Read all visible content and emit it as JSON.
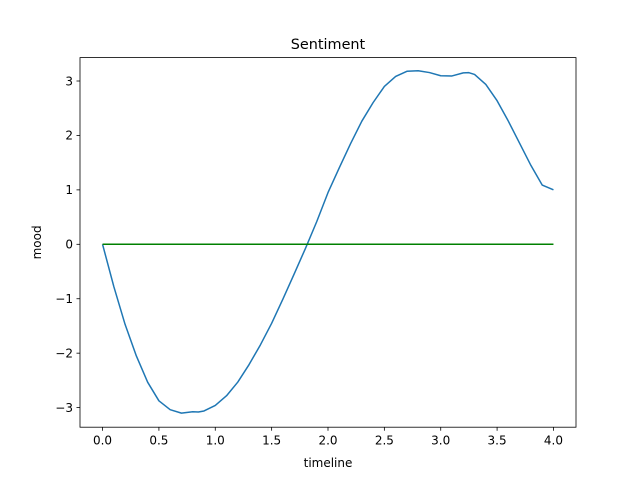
{
  "chart_data": {
    "type": "line",
    "title": "Sentiment",
    "xlabel": "timeline",
    "ylabel": "mood",
    "xlim": [
      -0.2,
      4.2
    ],
    "ylim": [
      -3.36,
      3.43
    ],
    "grid": false,
    "x_ticks": [
      0.0,
      0.5,
      1.0,
      1.5,
      2.0,
      2.5,
      3.0,
      3.5,
      4.0
    ],
    "x_tick_labels": [
      "0.0",
      "0.5",
      "1.0",
      "1.5",
      "2.0",
      "2.5",
      "3.0",
      "3.5",
      "4.0"
    ],
    "y_ticks": [
      -3,
      -2,
      -1,
      0,
      1,
      2,
      3
    ],
    "y_tick_labels": [
      "−3",
      "−2",
      "−1",
      "0",
      "1",
      "2",
      "3"
    ],
    "series": [
      {
        "color": "#1f77b4",
        "x": [
          0.0,
          0.1,
          0.2,
          0.3,
          0.4,
          0.5,
          0.6,
          0.7,
          0.8,
          0.85,
          0.9,
          1.0,
          1.1,
          1.2,
          1.3,
          1.4,
          1.5,
          1.6,
          1.7,
          1.8,
          1.9,
          2.0,
          2.1,
          2.2,
          2.3,
          2.4,
          2.5,
          2.6,
          2.7,
          2.8,
          2.9,
          3.0,
          3.1,
          3.2,
          3.25,
          3.3,
          3.4,
          3.5,
          3.6,
          3.7,
          3.8,
          3.9,
          4.0
        ],
        "y": [
          0.0,
          -0.776,
          -1.472,
          -2.051,
          -2.533,
          -2.875,
          -3.038,
          -3.101,
          -3.076,
          -3.081,
          -3.062,
          -2.96,
          -2.782,
          -2.531,
          -2.209,
          -1.849,
          -1.452,
          -1.005,
          -0.544,
          -0.075,
          0.417,
          0.95,
          1.405,
          1.849,
          2.262,
          2.603,
          2.9,
          3.083,
          3.179,
          3.188,
          3.155,
          3.097,
          3.093,
          3.15,
          3.153,
          3.121,
          2.936,
          2.638,
          2.262,
          1.855,
          1.449,
          1.089,
          1.0
        ]
      },
      {
        "color": "#008000",
        "x": [
          0.0,
          4.0
        ],
        "y": [
          0.0,
          0.0
        ]
      }
    ]
  }
}
